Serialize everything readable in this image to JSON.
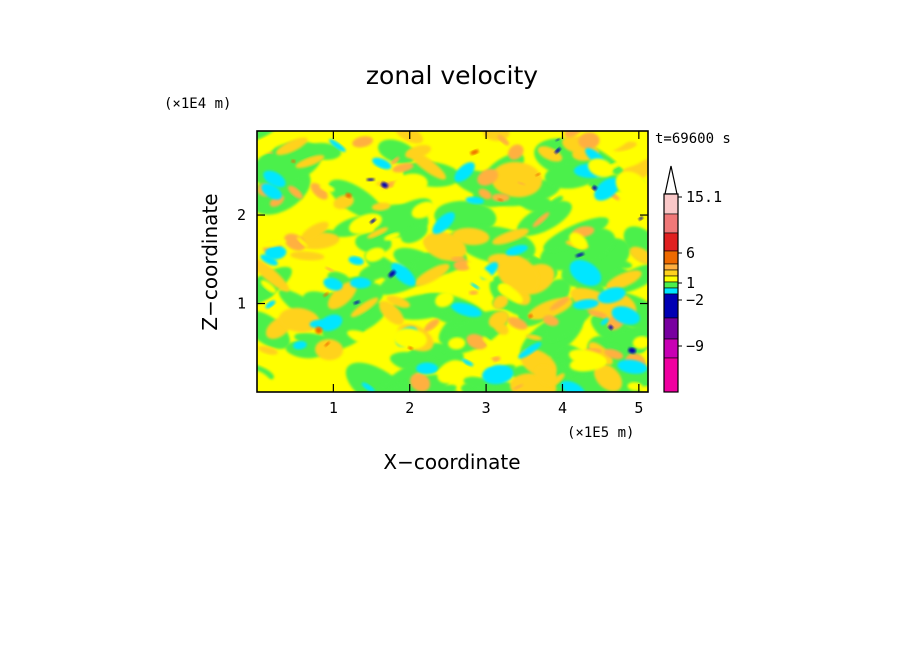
{
  "chart_data": {
    "type": "heatmap",
    "title": "zonal velocity",
    "xlabel": "X−coordinate",
    "ylabel": "Z−coordinate",
    "x_scale_label": "(×1E5 m)",
    "y_scale_label": "(×1E4 m)",
    "time_label": "t=69600 s",
    "xlim": [
      0,
      5.12
    ],
    "ylim": [
      0,
      2.95
    ],
    "x_ticks": [
      "1",
      "2",
      "3",
      "4",
      "5"
    ],
    "x_tick_values": [
      1,
      2,
      3,
      4,
      5
    ],
    "y_ticks": [
      "1",
      "2"
    ],
    "y_tick_values": [
      1,
      2
    ],
    "colorbar": {
      "labels": [
        "15.1",
        "6",
        "1",
        "−2",
        "−9"
      ],
      "colors_top_to_bottom": [
        "#fac8c8",
        "#f07878",
        "#e02020",
        "#ee6a00",
        "#ffb040",
        "#ffd21e",
        "#ffff00",
        "#4cf04c",
        "#00e6ff",
        "#0000b4",
        "#7800a0",
        "#c800b4",
        "#f000a0"
      ]
    },
    "colors": {
      "yellow": "#ffff00",
      "gold": "#ffd21e",
      "green": "#4cf04c",
      "cyan": "#00e6ff",
      "orange": "#ffb040",
      "dark_orange": "#ee6a00",
      "blue": "#0000b4"
    },
    "grid": false
  }
}
